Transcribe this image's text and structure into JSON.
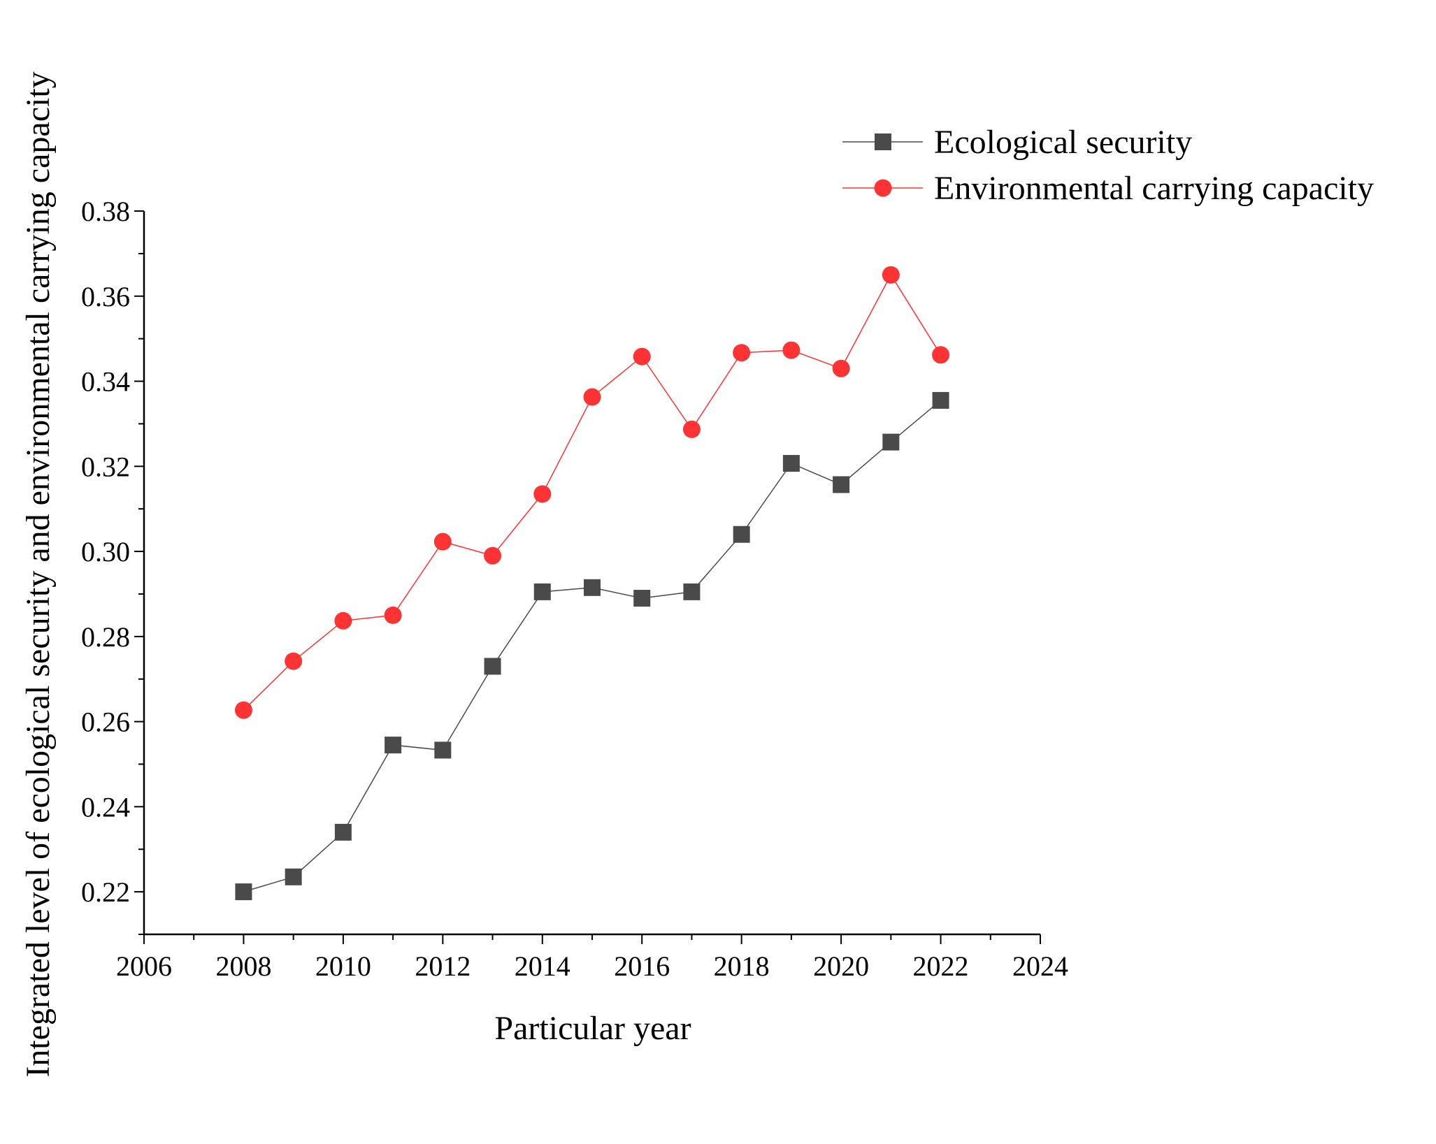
{
  "chart_data": {
    "type": "line",
    "xlabel": "Particular year",
    "ylabel": "Integrated level of ecological security and environmental carrying capacity",
    "xlim": [
      2006,
      2024
    ],
    "ylim": [
      0.21,
      0.38
    ],
    "x_ticks": [
      2006,
      2008,
      2010,
      2012,
      2014,
      2016,
      2018,
      2020,
      2022,
      2024
    ],
    "x_tick_labels": [
      "2006",
      "2008",
      "2010",
      "2012",
      "2014",
      "2016",
      "2018",
      "2020",
      "2022",
      "2024"
    ],
    "y_ticks": [
      0.22,
      0.24,
      0.26,
      0.28,
      0.3,
      0.32,
      0.34,
      0.36,
      0.38
    ],
    "y_tick_labels": [
      "0.22",
      "0.24",
      "0.26",
      "0.28",
      "0.30",
      "0.32",
      "0.34",
      "0.36",
      "0.38"
    ],
    "grid": false,
    "legend_position": "top-right",
    "x": [
      2008,
      2009,
      2010,
      2011,
      2012,
      2013,
      2014,
      2015,
      2016,
      2017,
      2018,
      2019,
      2020,
      2021,
      2022
    ],
    "series": [
      {
        "name": "Ecological security",
        "marker": "square",
        "color": "#4a4a4a",
        "values": [
          0.22,
          0.2235,
          0.234,
          0.2545,
          0.2533,
          0.273,
          0.2905,
          0.2915,
          0.289,
          0.2905,
          0.304,
          0.3207,
          0.3157,
          0.3257,
          0.3355
        ]
      },
      {
        "name": "Environmental carrying capacity",
        "marker": "circle",
        "color": "#ff3333",
        "values": [
          0.2627,
          0.2742,
          0.2837,
          0.285,
          0.3023,
          0.299,
          0.3135,
          0.3363,
          0.3458,
          0.3287,
          0.3467,
          0.3473,
          0.343,
          0.365,
          0.3462
        ]
      }
    ]
  }
}
